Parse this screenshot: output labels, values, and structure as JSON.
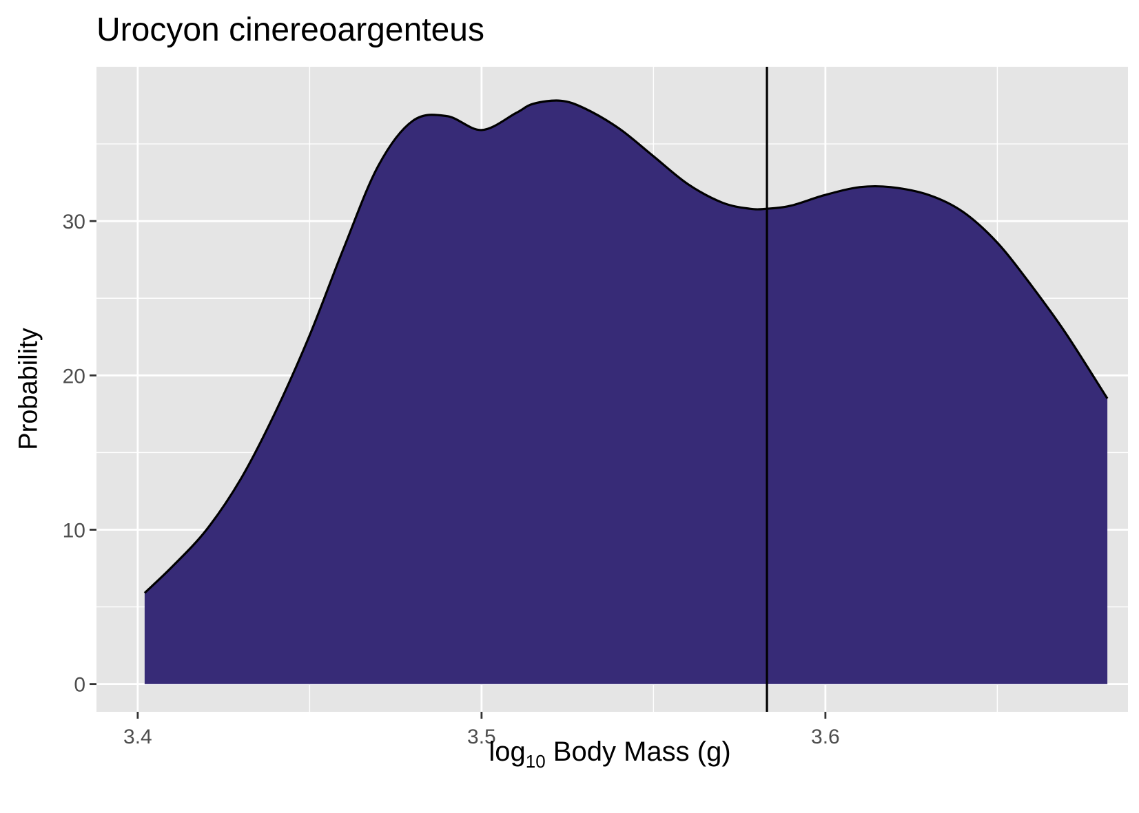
{
  "chart_data": {
    "type": "area",
    "title": "Urocyon cinereoargenteus",
    "xlabel": {
      "prefix": "log",
      "subscript": "10",
      "suffix": " Body Mass (g)"
    },
    "ylabel": "Probability",
    "xlim": [
      3.388,
      3.688
    ],
    "ylim": [
      -1.8,
      40.0
    ],
    "x_ticks": [
      3.4,
      3.5,
      3.6
    ],
    "x_tick_labels": [
      "3.4",
      "3.5",
      "3.6"
    ],
    "x_minor_ticks": [
      3.45,
      3.55,
      3.65
    ],
    "y_ticks": [
      0,
      10,
      20,
      30
    ],
    "y_tick_labels": [
      "0",
      "10",
      "20",
      "30"
    ],
    "y_minor_ticks": [
      5,
      15,
      25,
      35
    ],
    "grid": true,
    "colors": {
      "panel": "#e5e5e5",
      "grid": "#ffffff",
      "fill": "#372b77",
      "stroke": "#000000",
      "tick_text": "#4d4d4d"
    },
    "series": [
      {
        "x": [
          3.402,
          3.41,
          3.42,
          3.43,
          3.44,
          3.45,
          3.46,
          3.47,
          3.48,
          3.49,
          3.5,
          3.51,
          3.515,
          3.523,
          3.53,
          3.54,
          3.55,
          3.56,
          3.57,
          3.578,
          3.583,
          3.59,
          3.6,
          3.61,
          3.619,
          3.63,
          3.64,
          3.65,
          3.66,
          3.67,
          3.682
        ],
        "y": [
          5.9,
          7.6,
          10.0,
          13.3,
          17.6,
          22.6,
          28.3,
          33.6,
          36.5,
          36.8,
          35.9,
          37.0,
          37.6,
          37.8,
          37.3,
          36.0,
          34.2,
          32.4,
          31.2,
          30.8,
          30.8,
          31.0,
          31.7,
          32.2,
          32.2,
          31.7,
          30.6,
          28.6,
          25.8,
          22.7,
          18.5
        ]
      }
    ],
    "vline_x": 3.583
  }
}
